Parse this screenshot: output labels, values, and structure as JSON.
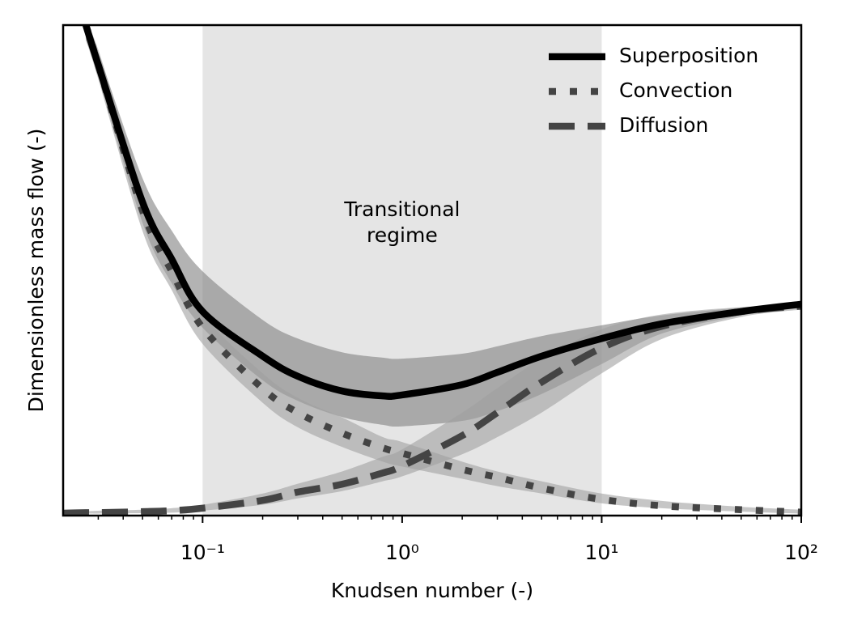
{
  "chart_data": {
    "type": "line",
    "xlabel": "Knudsen number (-)",
    "ylabel": "Dimensionless mass flow (-)",
    "xscale": "log",
    "xlim": [
      0.02,
      100
    ],
    "ylim": [
      0,
      1
    ],
    "xticks": [
      {
        "value": 0.1,
        "label": "10⁻¹"
      },
      {
        "value": 1,
        "label": "10⁰"
      },
      {
        "value": 10,
        "label": "10¹"
      },
      {
        "value": 100,
        "label": "10²"
      }
    ],
    "xminorticks": [
      0.03,
      0.04,
      0.05,
      0.06,
      0.07,
      0.08,
      0.09,
      0.2,
      0.3,
      0.4,
      0.5,
      0.6,
      0.7,
      0.8,
      0.9,
      2,
      3,
      4,
      5,
      6,
      7,
      8,
      9,
      20,
      30,
      40,
      50,
      60,
      70,
      80,
      90
    ],
    "span": {
      "x": [
        0.1,
        10
      ],
      "color": "#e5e5e5",
      "annotation": [
        "Transitional",
        "regime"
      ]
    },
    "legend": "upper right",
    "x": [
      0.02,
      0.026,
      0.03,
      0.05,
      0.07,
      0.1,
      0.2,
      0.3,
      0.5,
      0.8,
      1,
      2,
      3,
      5,
      10,
      20,
      50,
      100
    ],
    "series": [
      {
        "name": "Superposition",
        "color": "#000000",
        "linestyle": "solid",
        "band_color": "#808080",
        "values": [
          null,
          1.0,
          0.919,
          0.639,
          0.523,
          0.416,
          0.325,
          0.284,
          0.254,
          0.244,
          0.246,
          0.267,
          0.292,
          0.325,
          0.361,
          0.391,
          0.416,
          0.431
        ],
        "band_upper": [
          null,
          1.0,
          0.944,
          0.688,
          0.581,
          0.498,
          0.399,
          0.361,
          0.333,
          0.322,
          0.32,
          0.33,
          0.345,
          0.366,
          0.388,
          0.408,
          0.424,
          0.434
        ],
        "band_lower": [
          null,
          0.97,
          0.894,
          0.597,
          0.474,
          0.383,
          0.276,
          0.234,
          0.201,
          0.185,
          0.182,
          0.193,
          0.213,
          0.248,
          0.309,
          0.371,
          0.408,
          0.427
        ]
      },
      {
        "name": "Convection",
        "color": "#444444",
        "linestyle": "dotted",
        "band_color": "#a0a0a0",
        "values": [
          null,
          1.0,
          0.919,
          0.622,
          0.498,
          0.383,
          0.259,
          0.21,
          0.168,
          0.138,
          0.127,
          0.094,
          0.078,
          0.056,
          0.033,
          0.02,
          0.012,
          0.007
        ],
        "band_upper": [
          null,
          1.0,
          0.95,
          0.66,
          0.53,
          0.41,
          0.29,
          0.24,
          0.2,
          0.16,
          0.15,
          0.11,
          0.09,
          0.07,
          0.045,
          0.03,
          0.018,
          0.012
        ],
        "band_lower": [
          null,
          0.97,
          0.89,
          0.58,
          0.46,
          0.35,
          0.23,
          0.18,
          0.14,
          0.11,
          0.1,
          0.075,
          0.06,
          0.045,
          0.025,
          0.015,
          0.008,
          0.004
        ]
      },
      {
        "name": "Diffusion",
        "color": "#444444",
        "linestyle": "dashed",
        "band_color": "#a0a0a0",
        "values": [
          0.005,
          0.006,
          0.006,
          0.008,
          0.01,
          0.015,
          0.031,
          0.048,
          0.064,
          0.087,
          0.101,
          0.163,
          0.21,
          0.272,
          0.342,
          0.386,
          0.416,
          0.427
        ],
        "band_upper": [
          0.008,
          0.009,
          0.01,
          0.012,
          0.015,
          0.022,
          0.045,
          0.065,
          0.09,
          0.12,
          0.135,
          0.21,
          0.26,
          0.32,
          0.38,
          0.41,
          0.425,
          0.43
        ],
        "band_lower": [
          0.003,
          0.004,
          0.004,
          0.005,
          0.006,
          0.01,
          0.022,
          0.035,
          0.05,
          0.07,
          0.08,
          0.125,
          0.16,
          0.21,
          0.29,
          0.36,
          0.405,
          0.42
        ]
      }
    ]
  }
}
